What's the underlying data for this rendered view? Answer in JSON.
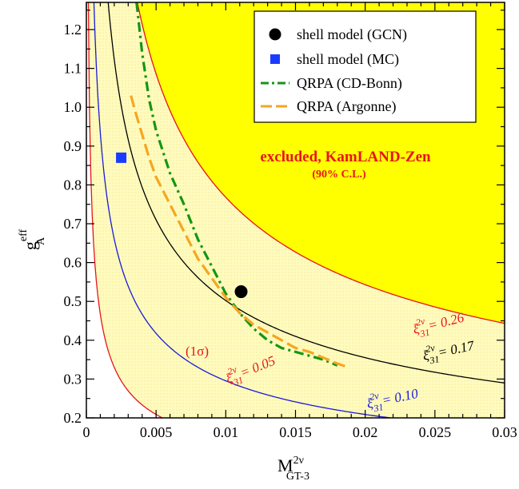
{
  "chart_data": {
    "type": "line",
    "xlim": [
      0,
      0.03
    ],
    "ylim": [
      0.2,
      1.27
    ],
    "x_ticks": [
      "0",
      "0.005",
      "0.01",
      "0.015",
      "0.02",
      "0.025",
      "0.03"
    ],
    "y_ticks": [
      "0.2",
      "0.3",
      "0.4",
      "0.5",
      "0.6",
      "0.7",
      "0.8",
      "0.9",
      "1.0",
      "1.1",
      "1.2"
    ],
    "x_tick_values": [
      0,
      0.005,
      0.01,
      0.015,
      0.02,
      0.025,
      0.03
    ],
    "y_tick_values": [
      0.2,
      0.3,
      0.4,
      0.5,
      0.6,
      0.7,
      0.8,
      0.9,
      1.0,
      1.1,
      1.2
    ],
    "xlabel": {
      "main": "M",
      "sup": "2ν",
      "sub": "GT-3"
    },
    "ylabel": {
      "main": "g",
      "sup": "eff",
      "sub": "A"
    },
    "colors": {
      "excluded": "#ffff00",
      "band": "#fffbbf",
      "xi026": "#e8141c",
      "xi017": "#000000",
      "xi010": "#1a1adb",
      "xi005": "#e8141c",
      "cdbonn": "#149614",
      "argonne": "#f5a623",
      "gcn": "#000000",
      "mc": "#1a3cff"
    },
    "contours": [
      {
        "id": "xi026",
        "xi": 0.26,
        "text_main": "ξ",
        "text_sub": "31",
        "text_sup": "2ν",
        "text_val": "= 0.26",
        "color": "#e8141c"
      },
      {
        "id": "xi017",
        "xi": 0.17,
        "text_main": "ξ",
        "text_sub": "31",
        "text_sup": "2ν",
        "text_val": "= 0.17",
        "color": "#000000"
      },
      {
        "id": "xi010",
        "xi": 0.1,
        "text_main": "ξ",
        "text_sub": "31",
        "text_sup": "2ν",
        "text_val": "= 0.10",
        "color": "#1a1adb"
      },
      {
        "id": "xi005",
        "xi": 0.05,
        "text_main": "ξ",
        "text_sub": "31",
        "text_sup": "2ν",
        "text_val": "= 0.05",
        "color": "#e8141c"
      }
    ],
    "series": [
      {
        "name": "QRPA (CD-Bonn)",
        "style": "dash-dot",
        "color": "#149614",
        "x": [
          0.0036,
          0.004,
          0.0045,
          0.005,
          0.006,
          0.007,
          0.008,
          0.009,
          0.01,
          0.011,
          0.012,
          0.013,
          0.014,
          0.015,
          0.016,
          0.017,
          0.018
        ],
        "y": [
          1.27,
          1.14,
          1.02,
          0.94,
          0.83,
          0.75,
          0.66,
          0.59,
          0.52,
          0.47,
          0.43,
          0.4,
          0.38,
          0.37,
          0.36,
          0.35,
          0.335
        ]
      },
      {
        "name": "QRPA (Argonne)",
        "style": "dashed",
        "color": "#f5a623",
        "x": [
          0.0032,
          0.0035,
          0.004,
          0.0045,
          0.005,
          0.006,
          0.007,
          0.008,
          0.009,
          0.01,
          0.011,
          0.012,
          0.013,
          0.014,
          0.015,
          0.016,
          0.017,
          0.018,
          0.0188
        ],
        "y": [
          1.03,
          0.99,
          0.93,
          0.87,
          0.82,
          0.75,
          0.68,
          0.61,
          0.56,
          0.51,
          0.47,
          0.44,
          0.42,
          0.4,
          0.38,
          0.37,
          0.355,
          0.34,
          0.33
        ]
      }
    ],
    "points": [
      {
        "name": "shell model (GCN)",
        "marker": "circle",
        "color": "#000000",
        "x": 0.0111,
        "y": 0.525
      },
      {
        "name": "shell model (MC)",
        "marker": "square",
        "color": "#1a3cff",
        "x": 0.0025,
        "y": 0.87
      }
    ],
    "annotations": {
      "excluded_title": "excluded, KamLAND-Zen",
      "excluded_sub": "(90% C.L.)",
      "sigma": "(1σ)"
    },
    "legend": {
      "position": "top-right",
      "entries": [
        "shell model (GCN)",
        "shell model (MC)",
        "QRPA (CD-Bonn)",
        "QRPA (Argonne)"
      ]
    }
  }
}
